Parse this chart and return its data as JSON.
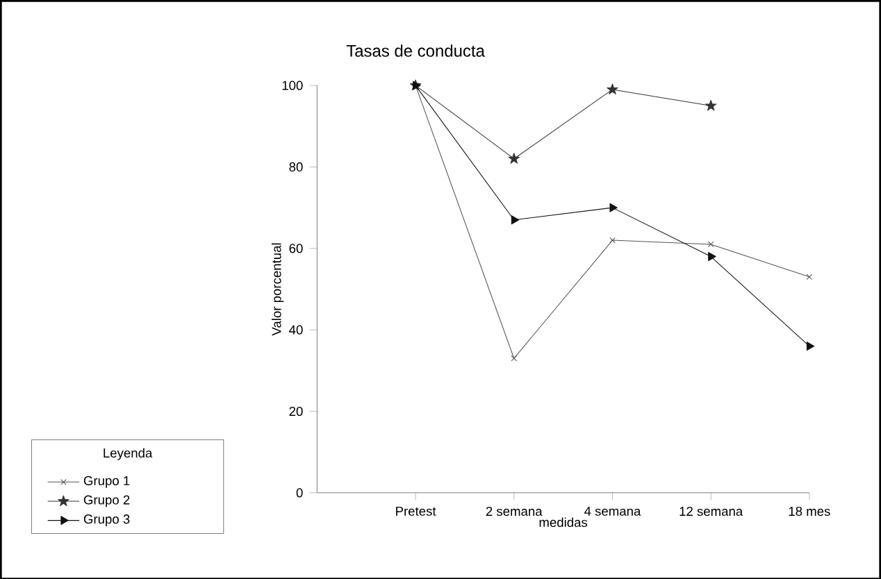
{
  "chart_data": {
    "type": "line",
    "title": "Tasas de conducta",
    "xlabel": "medidas",
    "ylabel": "Valor porcentual",
    "legend_title": "Leyenda",
    "categories": [
      "Pretest",
      "2 semana",
      "4 semana",
      "12 semana",
      "18 mes"
    ],
    "series": [
      {
        "name": "Grupo 1",
        "color": "#555555",
        "marker": "cross",
        "values": [
          100,
          33,
          62,
          61,
          53
        ]
      },
      {
        "name": "Grupo 2",
        "color": "#333333",
        "marker": "star",
        "values": [
          100,
          82,
          99,
          95,
          null
        ]
      },
      {
        "name": "Grupo 3",
        "color": "#111111",
        "marker": "triangle",
        "values": [
          100,
          67,
          70,
          58,
          36
        ]
      }
    ],
    "ylim": [
      0,
      100
    ],
    "yticks": [
      0,
      20,
      40,
      60,
      80,
      100
    ],
    "grid": false,
    "legend": "bottom left",
    "line_style": "solid"
  }
}
